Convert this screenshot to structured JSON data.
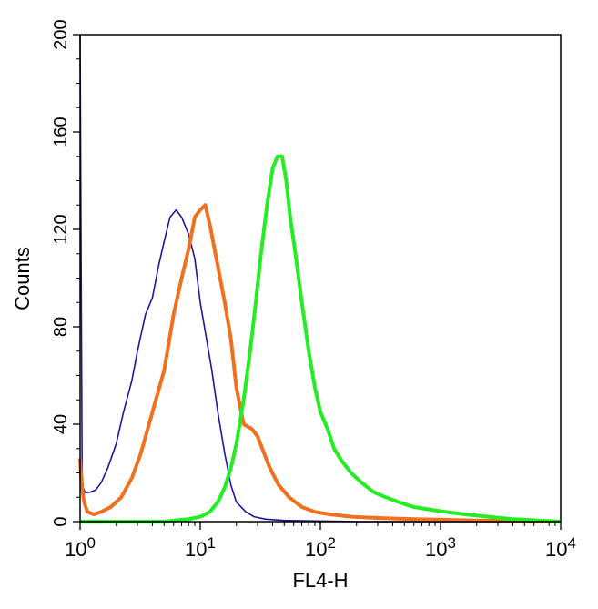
{
  "chart_data": {
    "type": "line",
    "title": "",
    "xlabel": "FL4-H",
    "ylabel": "Counts",
    "xscale": "log",
    "xlim": [
      1,
      10000
    ],
    "ylim": [
      0,
      200
    ],
    "grid": false,
    "legend": "none",
    "y_ticks": [
      {
        "value": 0,
        "label": "0"
      },
      {
        "value": 40,
        "label": "40"
      },
      {
        "value": 80,
        "label": "80"
      },
      {
        "value": 120,
        "label": "120"
      },
      {
        "value": 160,
        "label": "160"
      },
      {
        "value": 200,
        "label": "200"
      }
    ],
    "x_ticks": [
      {
        "value": 1,
        "base": "10",
        "exp": "0"
      },
      {
        "value": 10,
        "base": "10",
        "exp": "1"
      },
      {
        "value": 100,
        "base": "10",
        "exp": "2"
      },
      {
        "value": 1000,
        "base": "10",
        "exp": "3"
      },
      {
        "value": 10000,
        "base": "10",
        "exp": "4"
      }
    ],
    "series": [
      {
        "color": "#1a1aa0",
        "x": [
          1.0,
          1.02,
          1.04,
          1.06,
          1.1,
          1.2,
          1.35,
          1.5,
          1.7,
          2.0,
          2.3,
          2.7,
          3.0,
          3.5,
          4.0,
          4.5,
          5.0,
          5.6,
          6.3,
          7.0,
          8.0,
          9.0,
          10.0,
          11.0,
          12.5,
          14.0,
          16.0,
          18.0,
          20.0,
          24.0,
          28.0,
          35.0,
          50.0,
          80.0,
          200.0,
          10000.0
        ],
        "y": [
          200,
          110,
          20,
          14,
          12,
          12,
          13,
          16,
          22,
          32,
          45,
          58,
          70,
          85,
          92,
          105,
          115,
          125,
          128,
          125,
          118,
          108,
          90,
          78,
          62,
          45,
          28,
          15,
          8,
          4,
          2,
          1,
          0.5,
          0.3,
          0,
          0
        ]
      },
      {
        "color": "#f07020",
        "x": [
          1.0,
          1.03,
          1.08,
          1.15,
          1.3,
          1.5,
          1.8,
          2.2,
          2.7,
          3.2,
          4.0,
          5.0,
          6.0,
          7.0,
          8.0,
          9.0,
          10.0,
          11.0,
          12.0,
          14.0,
          16.0,
          18.0,
          20.0,
          23.0,
          27.0,
          30.0,
          34.0,
          38.0,
          45.0,
          55.0,
          70.0,
          90.0,
          120.0,
          180.0,
          300.0,
          600.0,
          2000.0,
          10000.0
        ],
        "y": [
          26,
          15,
          8,
          4,
          3,
          4,
          6,
          10,
          18,
          28,
          45,
          62,
          85,
          100,
          112,
          125,
          128,
          130,
          122,
          105,
          90,
          75,
          55,
          40,
          38,
          35,
          28,
          22,
          15,
          10,
          6,
          4,
          3,
          2,
          1.5,
          1,
          0.5,
          0
        ]
      },
      {
        "color": "#22ee22",
        "x": [
          1.0,
          5.0,
          8.0,
          10.0,
          12.0,
          14.0,
          16.0,
          18.0,
          20.0,
          23.0,
          26.0,
          29.0,
          32.0,
          36.0,
          40.0,
          44.0,
          48.0,
          52.0,
          56.0,
          62.0,
          70.0,
          80.0,
          90.0,
          100.0,
          115.0,
          130.0,
          150.0,
          180.0,
          220.0,
          280.0,
          350.0,
          450.0,
          600.0,
          800.0,
          1100.0,
          1600.0,
          2500.0,
          4000.0,
          10000.0
        ],
        "y": [
          0,
          0,
          1,
          2,
          4,
          8,
          14,
          22,
          32,
          50,
          70,
          90,
          110,
          130,
          145,
          150,
          150,
          140,
          125,
          110,
          90,
          70,
          55,
          45,
          38,
          30,
          25,
          20,
          16,
          12,
          10,
          8,
          6,
          5,
          4,
          3,
          2,
          1,
          0
        ]
      }
    ]
  }
}
